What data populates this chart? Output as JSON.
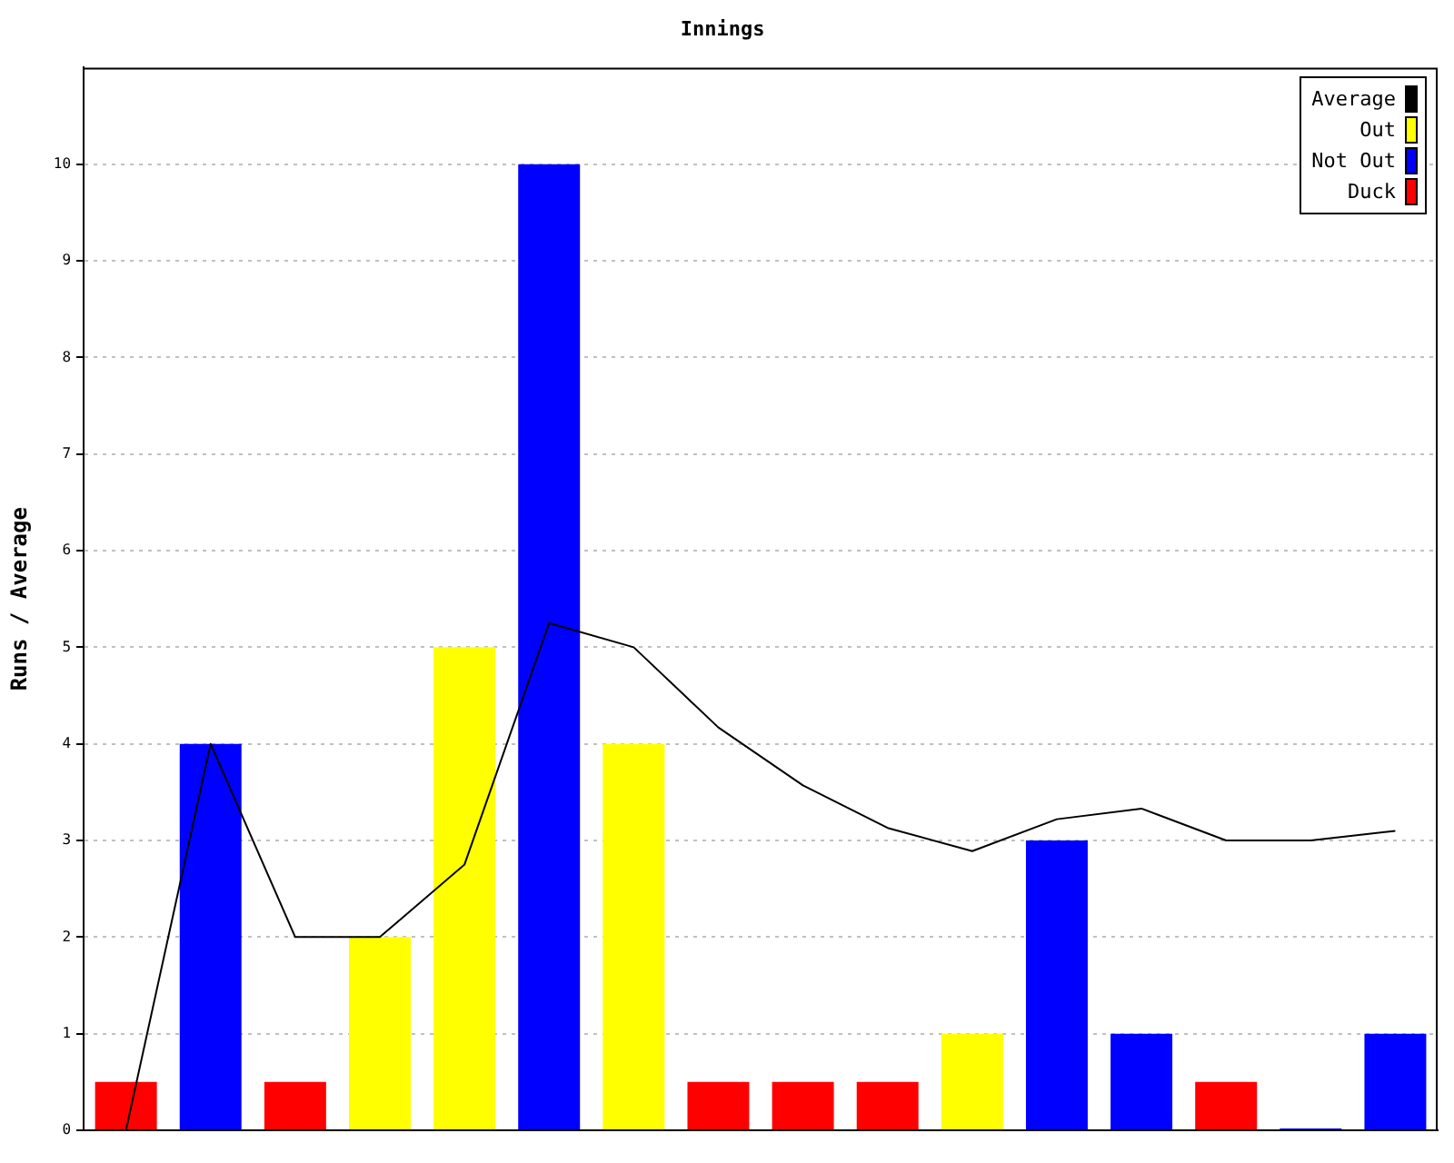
{
  "chart_data": {
    "type": "bar",
    "title": "Innings",
    "ylabel": "Runs / Average",
    "categories": [
      null,
      null,
      null,
      null,
      null,
      null,
      null,
      null,
      null,
      null,
      null,
      null,
      null,
      null,
      null,
      null
    ],
    "series": [
      {
        "name": "Average",
        "type": "line",
        "color": "#000000",
        "values": [
          0,
          4,
          2,
          2,
          2.75,
          5.25,
          5,
          4.17,
          3.57,
          3.13,
          2.89,
          3.22,
          3.33,
          3,
          3,
          3.1
        ]
      },
      {
        "name": "Out",
        "color": "#ffff00",
        "values": [
          null,
          null,
          null,
          2,
          5,
          null,
          4,
          null,
          null,
          null,
          1,
          null,
          null,
          null,
          null,
          null
        ]
      },
      {
        "name": "Not Out",
        "color": "#0000ff",
        "values": [
          null,
          4,
          null,
          null,
          null,
          10,
          null,
          null,
          null,
          null,
          null,
          3,
          1,
          null,
          0,
          1
        ]
      },
      {
        "name": "Duck",
        "color": "#ff0000",
        "values": [
          0.5,
          null,
          0.5,
          null,
          null,
          null,
          null,
          0.5,
          0.5,
          0.5,
          null,
          null,
          null,
          0.5,
          null,
          null
        ]
      }
    ],
    "ylim": [
      0,
      11
    ],
    "yticks": [
      0,
      1,
      2,
      3,
      4,
      5,
      6,
      7,
      8,
      9,
      10
    ],
    "grid": "y",
    "legend": "top right",
    "tick_labels": "y",
    "marker": "none"
  }
}
